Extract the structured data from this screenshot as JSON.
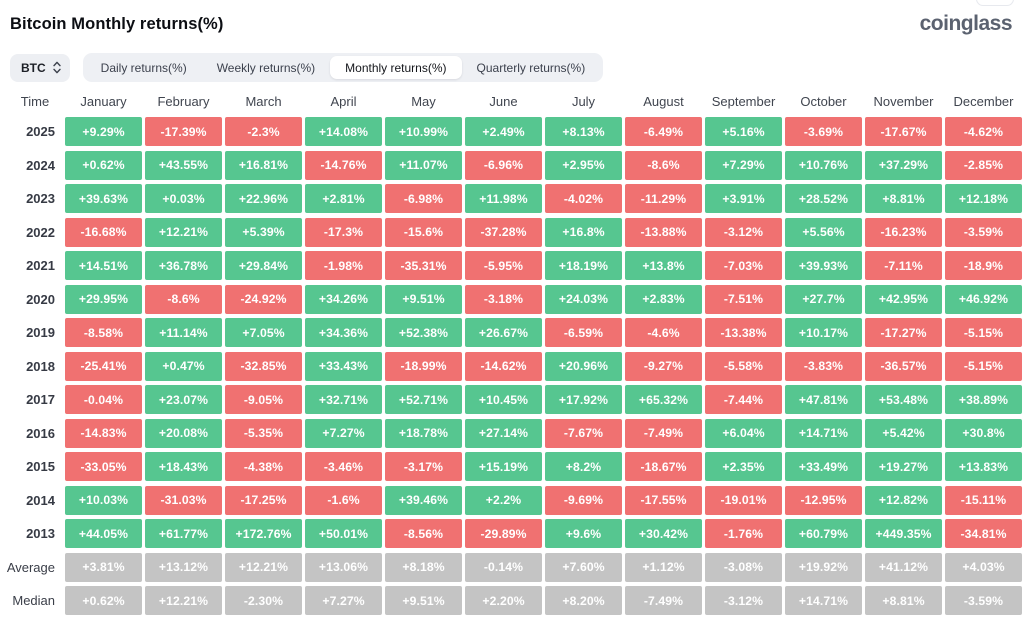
{
  "header": {
    "title": "Bitcoin Monthly returns(%)",
    "logo": "coinglass"
  },
  "controls": {
    "coin": "BTC",
    "tabs": [
      {
        "label": "Daily returns(%)",
        "active": false
      },
      {
        "label": "Weekly returns(%)",
        "active": false
      },
      {
        "label": "Monthly returns(%)",
        "active": true
      },
      {
        "label": "Quarterly returns(%)",
        "active": false
      }
    ]
  },
  "colors": {
    "positive": "#56c690",
    "negative": "#f07171",
    "neutral": "#c4c4c4",
    "cell_text": "#ffffff"
  },
  "chart_data": {
    "type": "heatmap",
    "title": "Bitcoin Monthly returns(%)",
    "time_column_label": "Time",
    "columns": [
      "January",
      "February",
      "March",
      "April",
      "May",
      "June",
      "July",
      "August",
      "September",
      "October",
      "November",
      "December"
    ],
    "legend": "green = positive return, red = negative return, gray = summary rows",
    "rows": [
      {
        "label": "2025",
        "kind": "year",
        "values": [
          "+9.29%",
          "-17.39%",
          "-2.3%",
          "+14.08%",
          "+10.99%",
          "+2.49%",
          "+8.13%",
          "-6.49%",
          "+5.16%",
          "-3.69%",
          "-17.67%",
          "-4.62%"
        ]
      },
      {
        "label": "2024",
        "kind": "year",
        "values": [
          "+0.62%",
          "+43.55%",
          "+16.81%",
          "-14.76%",
          "+11.07%",
          "-6.96%",
          "+2.95%",
          "-8.6%",
          "+7.29%",
          "+10.76%",
          "+37.29%",
          "-2.85%"
        ]
      },
      {
        "label": "2023",
        "kind": "year",
        "values": [
          "+39.63%",
          "+0.03%",
          "+22.96%",
          "+2.81%",
          "-6.98%",
          "+11.98%",
          "-4.02%",
          "-11.29%",
          "+3.91%",
          "+28.52%",
          "+8.81%",
          "+12.18%"
        ]
      },
      {
        "label": "2022",
        "kind": "year",
        "values": [
          "-16.68%",
          "+12.21%",
          "+5.39%",
          "-17.3%",
          "-15.6%",
          "-37.28%",
          "+16.8%",
          "-13.88%",
          "-3.12%",
          "+5.56%",
          "-16.23%",
          "-3.59%"
        ]
      },
      {
        "label": "2021",
        "kind": "year",
        "values": [
          "+14.51%",
          "+36.78%",
          "+29.84%",
          "-1.98%",
          "-35.31%",
          "-5.95%",
          "+18.19%",
          "+13.8%",
          "-7.03%",
          "+39.93%",
          "-7.11%",
          "-18.9%"
        ]
      },
      {
        "label": "2020",
        "kind": "year",
        "values": [
          "+29.95%",
          "-8.6%",
          "-24.92%",
          "+34.26%",
          "+9.51%",
          "-3.18%",
          "+24.03%",
          "+2.83%",
          "-7.51%",
          "+27.7%",
          "+42.95%",
          "+46.92%"
        ]
      },
      {
        "label": "2019",
        "kind": "year",
        "values": [
          "-8.58%",
          "+11.14%",
          "+7.05%",
          "+34.36%",
          "+52.38%",
          "+26.67%",
          "-6.59%",
          "-4.6%",
          "-13.38%",
          "+10.17%",
          "-17.27%",
          "-5.15%"
        ]
      },
      {
        "label": "2018",
        "kind": "year",
        "values": [
          "-25.41%",
          "+0.47%",
          "-32.85%",
          "+33.43%",
          "-18.99%",
          "-14.62%",
          "+20.96%",
          "-9.27%",
          "-5.58%",
          "-3.83%",
          "-36.57%",
          "-5.15%"
        ]
      },
      {
        "label": "2017",
        "kind": "year",
        "values": [
          "-0.04%",
          "+23.07%",
          "-9.05%",
          "+32.71%",
          "+52.71%",
          "+10.45%",
          "+17.92%",
          "+65.32%",
          "-7.44%",
          "+47.81%",
          "+53.48%",
          "+38.89%"
        ]
      },
      {
        "label": "2016",
        "kind": "year",
        "values": [
          "-14.83%",
          "+20.08%",
          "-5.35%",
          "+7.27%",
          "+18.78%",
          "+27.14%",
          "-7.67%",
          "-7.49%",
          "+6.04%",
          "+14.71%",
          "+5.42%",
          "+30.8%"
        ]
      },
      {
        "label": "2015",
        "kind": "year",
        "values": [
          "-33.05%",
          "+18.43%",
          "-4.38%",
          "-3.46%",
          "-3.17%",
          "+15.19%",
          "+8.2%",
          "-18.67%",
          "+2.35%",
          "+33.49%",
          "+19.27%",
          "+13.83%"
        ]
      },
      {
        "label": "2014",
        "kind": "year",
        "values": [
          "+10.03%",
          "-31.03%",
          "-17.25%",
          "-1.6%",
          "+39.46%",
          "+2.2%",
          "-9.69%",
          "-17.55%",
          "-19.01%",
          "-12.95%",
          "+12.82%",
          "-15.11%"
        ]
      },
      {
        "label": "2013",
        "kind": "year",
        "values": [
          "+44.05%",
          "+61.77%",
          "+172.76%",
          "+50.01%",
          "-8.56%",
          "-29.89%",
          "+9.6%",
          "+30.42%",
          "-1.76%",
          "+60.79%",
          "+449.35%",
          "-34.81%"
        ]
      },
      {
        "label": "Average",
        "kind": "stat",
        "values": [
          "+3.81%",
          "+13.12%",
          "+12.21%",
          "+13.06%",
          "+8.18%",
          "-0.14%",
          "+7.60%",
          "+1.12%",
          "-3.08%",
          "+19.92%",
          "+41.12%",
          "+4.03%"
        ]
      },
      {
        "label": "Median",
        "kind": "stat",
        "values": [
          "+0.62%",
          "+12.21%",
          "-2.30%",
          "+7.27%",
          "+9.51%",
          "+2.20%",
          "+8.20%",
          "-7.49%",
          "-3.12%",
          "+14.71%",
          "+8.81%",
          "-3.59%"
        ]
      }
    ]
  }
}
